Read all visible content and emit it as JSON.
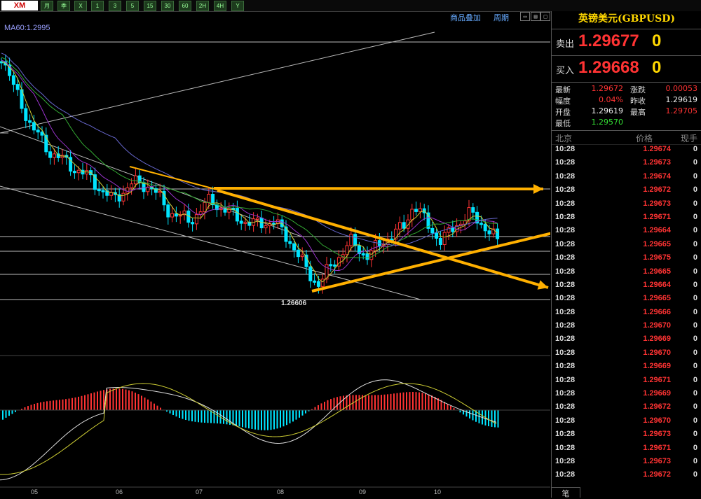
{
  "toolbar": {
    "logo": "XM",
    "buttons": [
      "月",
      "季",
      "X",
      "1",
      "3",
      "5",
      "15",
      "30",
      "60",
      "2H",
      "4H",
      "Y"
    ]
  },
  "chart": {
    "menu_add": "商品叠加",
    "menu_period": "周期",
    "ma_label": "MA60:1.2995",
    "low_label": "1.26606",
    "x_labels": [
      "05",
      "06",
      "07",
      "08",
      "09",
      "10"
    ]
  },
  "panel": {
    "symbol": "英镑美元(GBPUSD)",
    "sell_label": "卖出",
    "sell_price": "1.29677",
    "sell_suffix": "0",
    "buy_label": "买入",
    "buy_price": "1.29668",
    "buy_suffix": "0",
    "stats": {
      "latest_label": "最新",
      "latest": "1.29672",
      "change_label": "涨跌",
      "change": "0.00053",
      "range_label": "幅度",
      "range": "0.04%",
      "prev_label": "昨收",
      "prev": "1.29619",
      "open_label": "开盘",
      "open": "1.29619",
      "high_label": "最高",
      "high": "1.29705",
      "low_label": "最低",
      "low": "1.29570"
    },
    "ticks_header": {
      "time": "北京",
      "price": "价格",
      "vol": "现手"
    },
    "ticks": [
      {
        "time": "10:28",
        "price": "1.29674",
        "vol": "0"
      },
      {
        "time": "10:28",
        "price": "1.29673",
        "vol": "0"
      },
      {
        "time": "10:28",
        "price": "1.29674",
        "vol": "0"
      },
      {
        "time": "10:28",
        "price": "1.29672",
        "vol": "0"
      },
      {
        "time": "10:28",
        "price": "1.29673",
        "vol": "0"
      },
      {
        "time": "10:28",
        "price": "1.29671",
        "vol": "0"
      },
      {
        "time": "10:28",
        "price": "1.29664",
        "vol": "0"
      },
      {
        "time": "10:28",
        "price": "1.29665",
        "vol": "0"
      },
      {
        "time": "10:28",
        "price": "1.29675",
        "vol": "0"
      },
      {
        "time": "10:28",
        "price": "1.29665",
        "vol": "0"
      },
      {
        "time": "10:28",
        "price": "1.29664",
        "vol": "0"
      },
      {
        "time": "10:28",
        "price": "1.29665",
        "vol": "0"
      },
      {
        "time": "10:28",
        "price": "1.29666",
        "vol": "0"
      },
      {
        "time": "10:28",
        "price": "1.29670",
        "vol": "0"
      },
      {
        "time": "10:28",
        "price": "1.29669",
        "vol": "0"
      },
      {
        "time": "10:28",
        "price": "1.29670",
        "vol": "0"
      },
      {
        "time": "10:28",
        "price": "1.29669",
        "vol": "0"
      },
      {
        "time": "10:28",
        "price": "1.29671",
        "vol": "0"
      },
      {
        "time": "10:28",
        "price": "1.29669",
        "vol": "0"
      },
      {
        "time": "10:28",
        "price": "1.29672",
        "vol": "0"
      },
      {
        "time": "10:28",
        "price": "1.29670",
        "vol": "0"
      },
      {
        "time": "10:28",
        "price": "1.29673",
        "vol": "0"
      },
      {
        "time": "10:28",
        "price": "1.29671",
        "vol": "0"
      },
      {
        "time": "10:28",
        "price": "1.29673",
        "vol": "0"
      },
      {
        "time": "10:28",
        "price": "1.29672",
        "vol": "0"
      }
    ],
    "footer": "笔"
  },
  "colors": {
    "up": "#ff3333",
    "down": "#00e5ff",
    "annotation": "#ffb000",
    "ma_purple": "#9933cc",
    "ma_green": "#33aa33",
    "ma_blue": "#6666cc",
    "ma_yellow": "#cccc33"
  }
}
